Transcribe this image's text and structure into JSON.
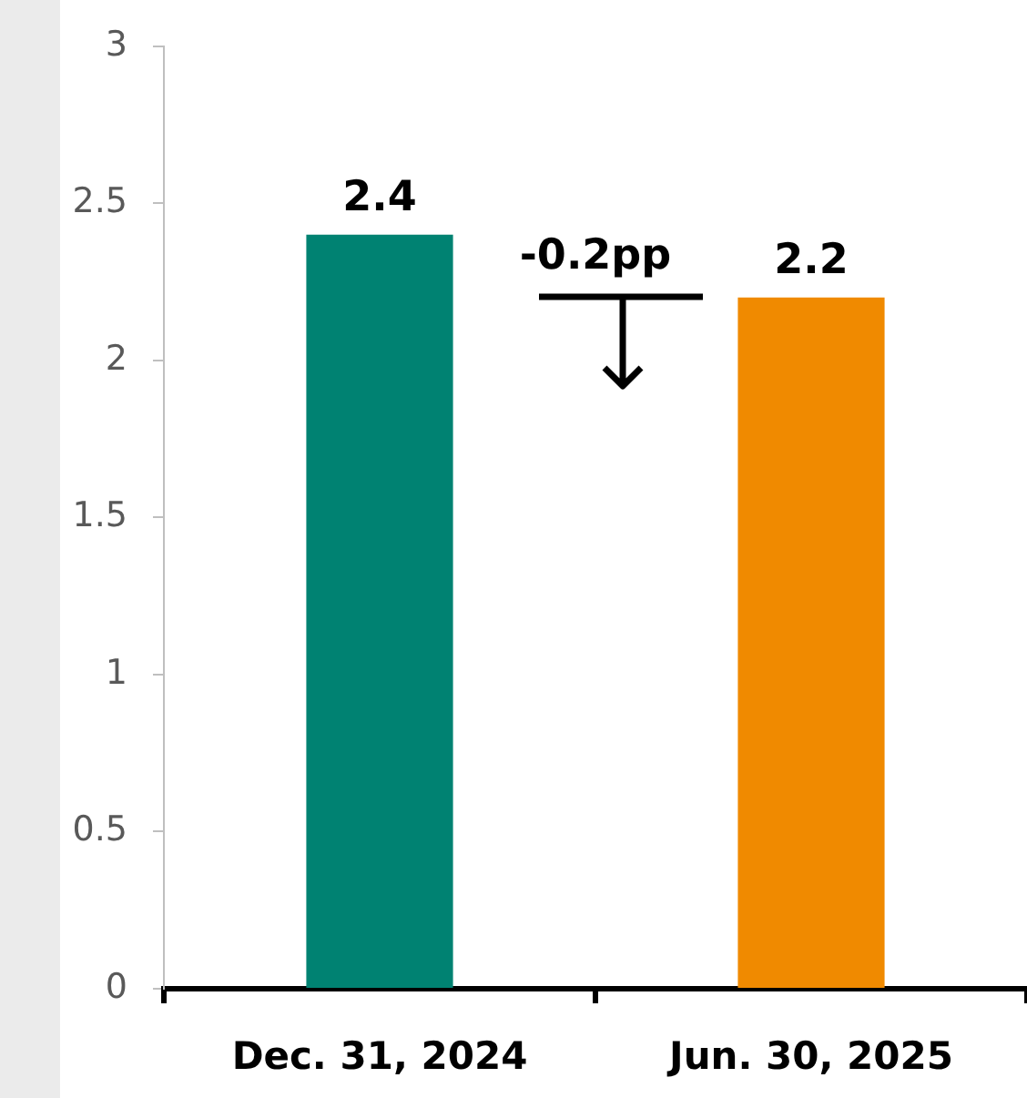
{
  "chart_data": {
    "type": "bar",
    "categories": [
      "Dec. 31, 2024",
      "Jun. 30, 2025"
    ],
    "values": [
      2.4,
      2.2
    ],
    "colors": [
      "#008272",
      "#f08a00"
    ],
    "ylim": [
      0,
      3
    ],
    "yticks": [
      0,
      0.5,
      1,
      1.5,
      2,
      2.5,
      3
    ],
    "grid": false,
    "legend": false,
    "data_labels": true,
    "annotations": [
      "-0.2pp"
    ]
  }
}
